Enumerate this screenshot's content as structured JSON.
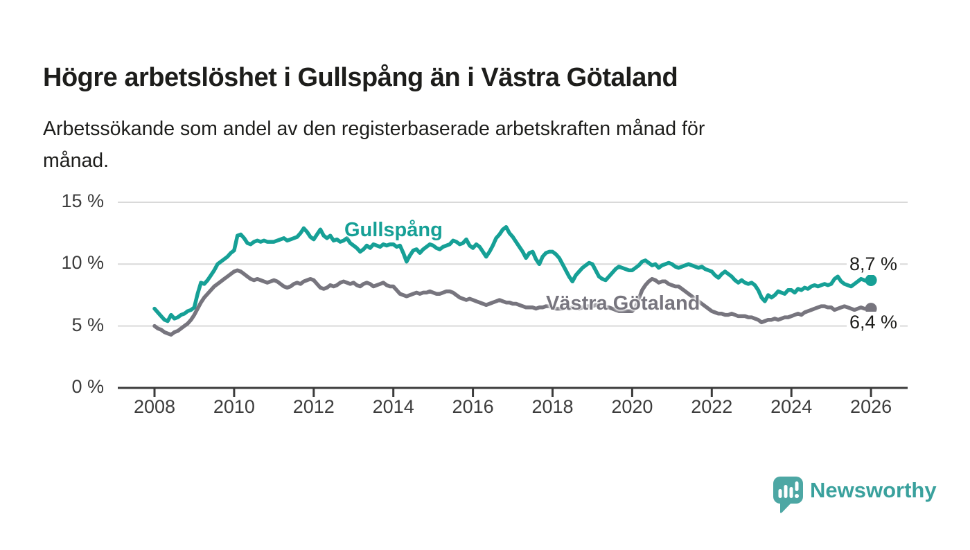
{
  "header": {
    "title": "Högre arbetslöshet i Gullspång än i Västra Götaland",
    "subtitle_lines": [
      "Arbetssökande som andel av den registerbaserade arbetskraften månad för",
      "månad."
    ]
  },
  "chart_data": {
    "type": "line",
    "unit": "%",
    "x_start": 2008,
    "points_per_year": 12,
    "xlabel": "",
    "ylabel": "",
    "ylim": [
      0,
      15
    ],
    "x_ticks": [
      "2008",
      "2010",
      "2012",
      "2014",
      "2016",
      "2018",
      "2020",
      "2022",
      "2024",
      "2026"
    ],
    "y_ticks": [
      {
        "label": "0 %",
        "value": 0
      },
      {
        "label": "5 %",
        "value": 5
      },
      {
        "label": "10 %",
        "value": 10
      },
      {
        "label": "15 %",
        "value": 15
      }
    ],
    "grid": "horizontal-only",
    "legend": "inline-labels",
    "series": [
      {
        "id": "gullspang",
        "label": "Gullspång",
        "color": "#16a096",
        "end_label": "8,7 %",
        "end_value": 8.7,
        "values": [
          6.4,
          6.1,
          5.8,
          5.5,
          5.4,
          5.9,
          5.6,
          5.7,
          5.9,
          6.0,
          6.2,
          6.3,
          6.5,
          7.6,
          8.5,
          8.4,
          8.7,
          9.1,
          9.5,
          10.0,
          10.2,
          10.4,
          10.6,
          10.9,
          11.1,
          12.3,
          12.4,
          12.1,
          11.7,
          11.6,
          11.8,
          11.9,
          11.8,
          11.9,
          11.8,
          11.8,
          11.8,
          11.9,
          12.0,
          12.1,
          11.9,
          12.0,
          12.1,
          12.2,
          12.5,
          12.9,
          12.6,
          12.2,
          12.0,
          12.4,
          12.8,
          12.3,
          12.1,
          12.3,
          11.9,
          12.0,
          11.8,
          11.9,
          12.1,
          11.7,
          11.5,
          11.3,
          11.0,
          11.2,
          11.5,
          11.3,
          11.6,
          11.5,
          11.4,
          11.6,
          11.5,
          11.6,
          11.6,
          11.4,
          11.5,
          10.9,
          10.2,
          10.7,
          11.1,
          11.2,
          10.9,
          11.2,
          11.4,
          11.6,
          11.5,
          11.3,
          11.2,
          11.4,
          11.5,
          11.6,
          11.9,
          11.8,
          11.6,
          11.7,
          12.0,
          11.5,
          11.3,
          11.6,
          11.4,
          11.0,
          10.6,
          11.0,
          11.5,
          12.1,
          12.4,
          12.8,
          13.0,
          12.5,
          12.2,
          11.8,
          11.4,
          11.0,
          10.5,
          10.9,
          11.0,
          10.4,
          10.0,
          10.6,
          10.9,
          11.0,
          11.0,
          10.8,
          10.5,
          10.0,
          9.5,
          9.0,
          8.6,
          9.1,
          9.4,
          9.7,
          9.9,
          10.1,
          10.0,
          9.5,
          9.0,
          8.8,
          8.7,
          9.0,
          9.3,
          9.6,
          9.8,
          9.7,
          9.6,
          9.5,
          9.5,
          9.7,
          9.9,
          10.2,
          10.3,
          10.1,
          9.9,
          10.0,
          9.7,
          9.9,
          10.0,
          10.1,
          10.0,
          9.8,
          9.7,
          9.8,
          9.9,
          10.0,
          9.9,
          9.8,
          9.7,
          9.8,
          9.6,
          9.5,
          9.4,
          9.1,
          8.9,
          9.2,
          9.4,
          9.2,
          9.0,
          8.7,
          8.5,
          8.7,
          8.5,
          8.4,
          8.5,
          8.3,
          7.9,
          7.3,
          7.0,
          7.5,
          7.3,
          7.5,
          7.8,
          7.7,
          7.6,
          7.9,
          7.9,
          7.7,
          8.0,
          7.9,
          8.1,
          8.0,
          8.2,
          8.3,
          8.2,
          8.3,
          8.4,
          8.3,
          8.4,
          8.8,
          9.0,
          8.6,
          8.4,
          8.3,
          8.2,
          8.4,
          8.6,
          8.8,
          8.7,
          8.6,
          8.7
        ]
      },
      {
        "id": "vastra-gotaland",
        "label": "Västra Götaland",
        "color": "#77757e",
        "end_label": "6,4 %",
        "end_value": 6.4,
        "values": [
          5.0,
          4.8,
          4.7,
          4.5,
          4.4,
          4.3,
          4.5,
          4.6,
          4.8,
          5.0,
          5.2,
          5.5,
          5.9,
          6.4,
          6.9,
          7.3,
          7.6,
          7.9,
          8.2,
          8.4,
          8.6,
          8.8,
          9.0,
          9.2,
          9.4,
          9.5,
          9.4,
          9.2,
          9.0,
          8.8,
          8.7,
          8.8,
          8.7,
          8.6,
          8.5,
          8.6,
          8.7,
          8.6,
          8.4,
          8.2,
          8.1,
          8.2,
          8.4,
          8.5,
          8.4,
          8.6,
          8.7,
          8.8,
          8.7,
          8.4,
          8.1,
          8.0,
          8.1,
          8.3,
          8.2,
          8.3,
          8.5,
          8.6,
          8.5,
          8.4,
          8.5,
          8.3,
          8.2,
          8.4,
          8.5,
          8.4,
          8.2,
          8.3,
          8.4,
          8.5,
          8.3,
          8.2,
          8.2,
          7.9,
          7.6,
          7.5,
          7.4,
          7.5,
          7.6,
          7.7,
          7.6,
          7.7,
          7.7,
          7.8,
          7.7,
          7.6,
          7.6,
          7.7,
          7.8,
          7.8,
          7.7,
          7.5,
          7.3,
          7.2,
          7.1,
          7.2,
          7.1,
          7.0,
          6.9,
          6.8,
          6.7,
          6.8,
          6.9,
          7.0,
          7.1,
          7.0,
          6.9,
          6.9,
          6.8,
          6.8,
          6.7,
          6.6,
          6.5,
          6.5,
          6.5,
          6.4,
          6.5,
          6.5,
          6.6,
          6.6,
          6.5,
          6.4,
          6.4,
          6.4,
          6.5,
          6.4,
          6.5,
          6.5,
          6.4,
          6.5,
          6.6,
          6.6,
          6.6,
          6.7,
          6.7,
          6.6,
          6.5,
          6.5,
          6.4,
          6.3,
          6.2,
          6.2,
          6.2,
          6.2,
          6.2,
          6.5,
          7.2,
          7.9,
          8.3,
          8.6,
          8.8,
          8.7,
          8.5,
          8.6,
          8.6,
          8.4,
          8.3,
          8.2,
          8.2,
          8.0,
          7.8,
          7.6,
          7.4,
          7.2,
          7.0,
          6.8,
          6.6,
          6.4,
          6.2,
          6.1,
          6.0,
          6.0,
          5.9,
          5.9,
          6.0,
          5.9,
          5.8,
          5.8,
          5.8,
          5.7,
          5.7,
          5.6,
          5.5,
          5.3,
          5.4,
          5.5,
          5.5,
          5.6,
          5.5,
          5.6,
          5.7,
          5.7,
          5.8,
          5.9,
          6.0,
          5.9,
          6.1,
          6.2,
          6.3,
          6.4,
          6.5,
          6.6,
          6.6,
          6.5,
          6.5,
          6.3,
          6.4,
          6.5,
          6.6,
          6.5,
          6.4,
          6.3,
          6.4,
          6.5,
          6.4,
          6.4,
          6.4
        ]
      }
    ]
  },
  "footer": {
    "brand": "Newsworthy",
    "brand_color": "#3aa19d",
    "logo_icon": "bar-chart-speech-bubble"
  }
}
